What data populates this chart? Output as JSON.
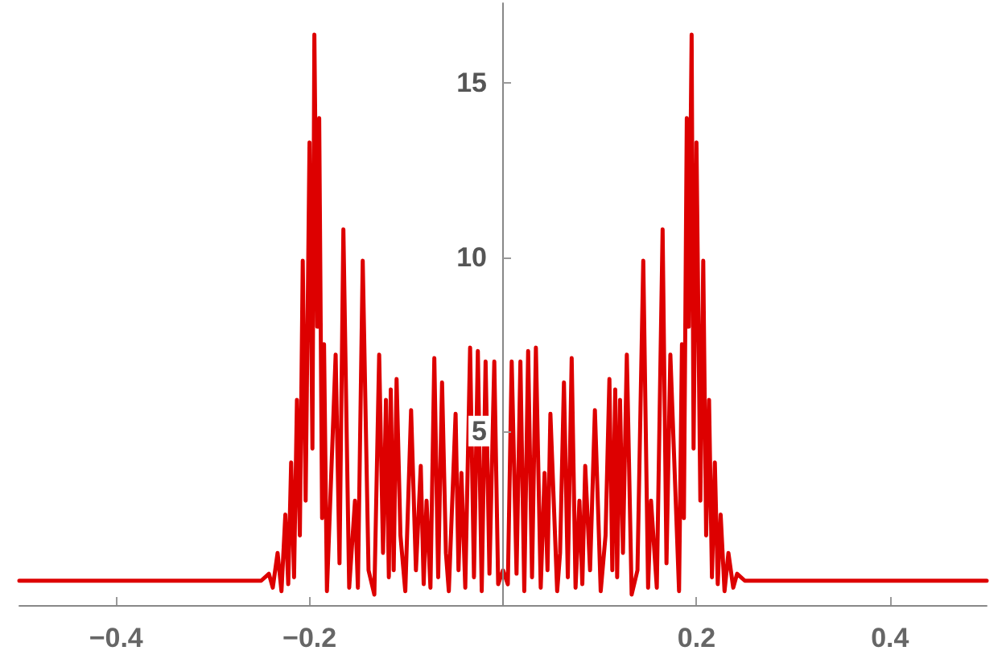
{
  "chart_data": {
    "type": "line",
    "color": "#dd0000",
    "line_style": "solid",
    "marker": "none",
    "grid": false,
    "xlim": [
      -0.5,
      0.5
    ],
    "xticks": [
      -0.4,
      -0.2,
      0.2,
      0.4
    ],
    "ylim": [
      0,
      17.3
    ],
    "yticks": [
      5,
      10,
      15
    ],
    "x": [
      -0.5,
      -0.3,
      -0.25,
      -0.242,
      -0.238,
      -0.233,
      -0.229,
      -0.225,
      -0.222,
      -0.219,
      -0.216,
      -0.213,
      -0.21,
      -0.207,
      -0.204,
      -0.2,
      -0.197,
      -0.195,
      -0.192,
      -0.19,
      -0.187,
      -0.185,
      -0.182,
      -0.173,
      -0.169,
      -0.165,
      -0.159,
      -0.153,
      -0.15,
      -0.145,
      -0.139,
      -0.133,
      -0.128,
      -0.124,
      -0.121,
      -0.118,
      -0.116,
      -0.113,
      -0.11,
      -0.106,
      -0.101,
      -0.095,
      -0.09,
      -0.085,
      -0.082,
      -0.079,
      -0.075,
      -0.071,
      -0.067,
      -0.063,
      -0.059,
      -0.056,
      -0.049,
      -0.046,
      -0.043,
      -0.039,
      -0.034,
      -0.03,
      -0.026,
      -0.022,
      -0.018,
      -0.014,
      -0.009,
      -0.005,
      0,
      0.005,
      0.009,
      0.014,
      0.018,
      0.022,
      0.026,
      0.03,
      0.034,
      0.039,
      0.043,
      0.046,
      0.049,
      0.056,
      0.059,
      0.063,
      0.067,
      0.071,
      0.075,
      0.079,
      0.082,
      0.085,
      0.09,
      0.095,
      0.101,
      0.106,
      0.11,
      0.113,
      0.116,
      0.118,
      0.121,
      0.124,
      0.128,
      0.133,
      0.139,
      0.145,
      0.15,
      0.153,
      0.159,
      0.165,
      0.169,
      0.173,
      0.182,
      0.185,
      0.187,
      0.19,
      0.192,
      0.195,
      0.197,
      0.2,
      0.204,
      0.207,
      0.21,
      0.213,
      0.216,
      0.219,
      0.222,
      0.225,
      0.229,
      0.233,
      0.238,
      0.242,
      0.25,
      0.3,
      0.5
    ],
    "values": [
      0.7,
      0.7,
      0.7,
      0.9,
      0.5,
      1.5,
      0.4,
      2.6,
      0.6,
      4.1,
      0.8,
      5.9,
      2.0,
      9.9,
      3.0,
      13.3,
      4.5,
      16.4,
      8.0,
      14.0,
      2.5,
      7.5,
      0.4,
      7.2,
      1.2,
      10.8,
      0.5,
      3.0,
      0.5,
      9.9,
      1.0,
      0.3,
      7.2,
      1.5,
      5.9,
      0.8,
      6.2,
      1.0,
      6.5,
      2.0,
      0.4,
      5.6,
      1.0,
      4.0,
      0.6,
      3.0,
      0.5,
      7.1,
      0.8,
      6.4,
      1.5,
      0.4,
      5.5,
      1.0,
      3.8,
      0.5,
      7.4,
      0.8,
      7.3,
      0.4,
      7.0,
      0.9,
      7.0,
      0.6,
      1.0,
      0.6,
      7.0,
      0.9,
      7.0,
      0.4,
      7.3,
      0.8,
      7.4,
      0.5,
      3.8,
      1.0,
      5.5,
      0.4,
      1.5,
      6.4,
      0.8,
      7.1,
      0.5,
      3.0,
      0.6,
      4.0,
      1.0,
      5.6,
      0.4,
      2.0,
      6.5,
      1.0,
      6.2,
      0.8,
      5.9,
      1.5,
      7.2,
      0.3,
      1.0,
      9.9,
      0.5,
      3.0,
      0.5,
      10.8,
      1.2,
      7.2,
      0.4,
      7.5,
      2.5,
      14.0,
      8.0,
      16.4,
      4.5,
      13.3,
      3.0,
      9.9,
      2.0,
      5.9,
      0.8,
      4.1,
      0.6,
      2.6,
      0.4,
      1.5,
      0.5,
      0.9,
      0.7,
      0.7,
      0.7
    ]
  }
}
